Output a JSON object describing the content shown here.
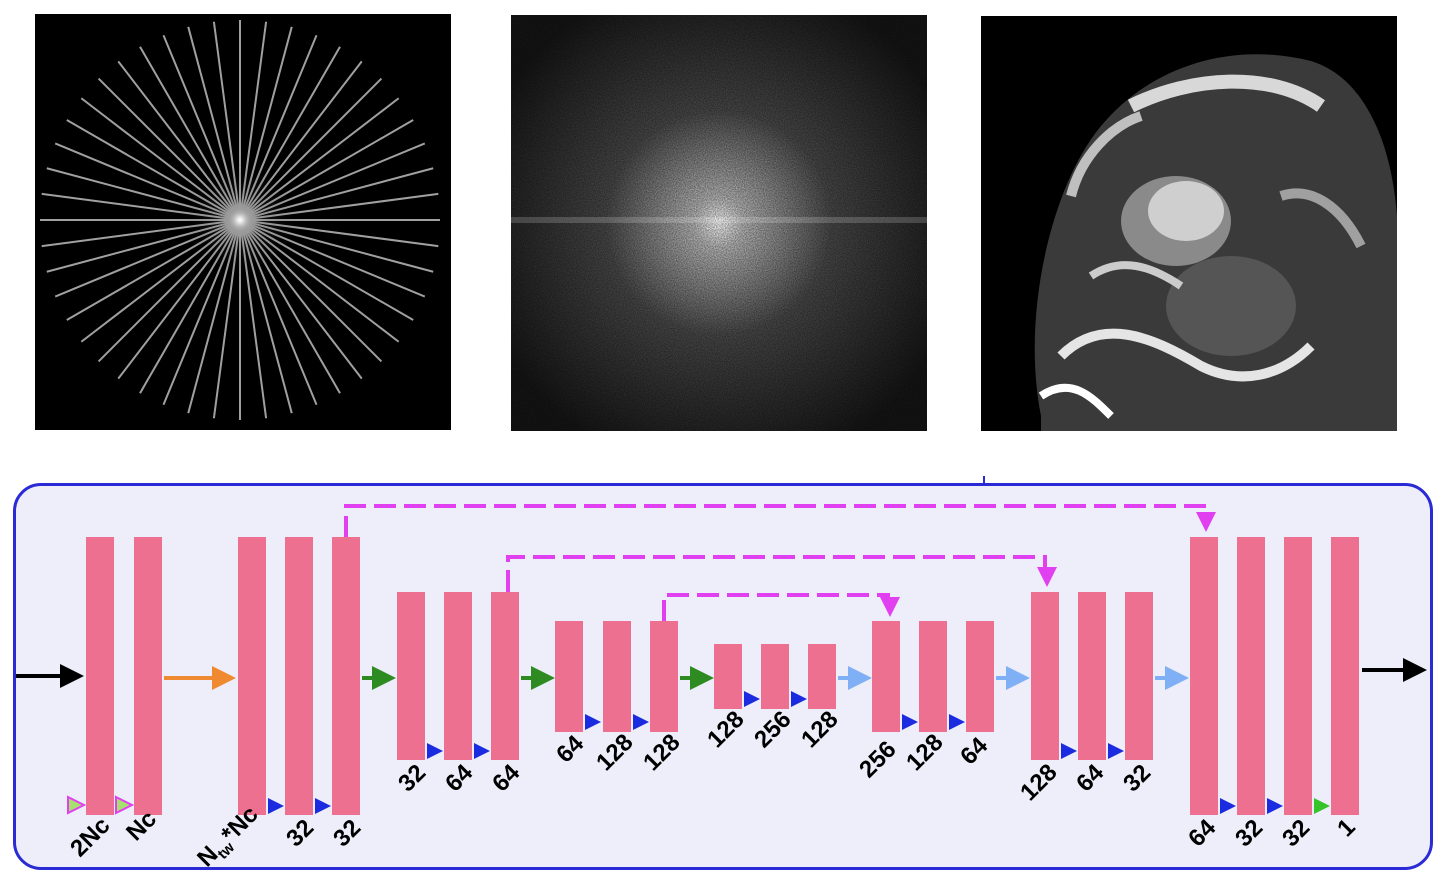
{
  "images": [
    {
      "name": "radial-kspace-sampling"
    },
    {
      "name": "kspace-full"
    },
    {
      "name": "cardiac-mri-reconstruction"
    }
  ],
  "network": {
    "labels": {
      "b0": "2Nc",
      "b1": "Nc",
      "b2_main": "N",
      "b2_sub": "tw",
      "b2_tail": "*Nc",
      "b3": "32",
      "b4": "32",
      "b5": "32",
      "b6": "64",
      "b7": "64",
      "b8": "64",
      "b9": "128",
      "b10": "128",
      "b11": "128",
      "b12": "256",
      "b13": "128",
      "b14": "256",
      "b15": "128",
      "b16": "64",
      "b17": "128",
      "b18": "64",
      "b19": "32",
      "b20": "64",
      "b21": "32",
      "b22": "32",
      "b23": "1"
    },
    "colors": {
      "block": "#ee7090",
      "frame": "#2b2bd6",
      "frame_fill": "#eeeefa",
      "skip": "#e040f0",
      "conv_arrow": "#1a2be0",
      "down_arrow": "#2e8b22",
      "up_arrow": "#7fb0f5",
      "init_arrow": "#f08a30",
      "final_arrow": "#36c42a",
      "io_arrow": "#000000"
    }
  }
}
